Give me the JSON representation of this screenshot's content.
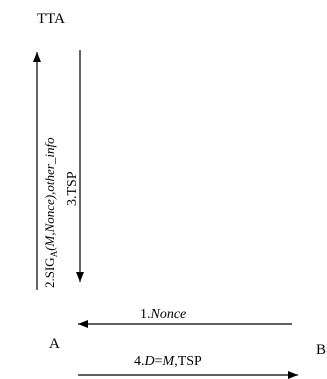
{
  "nodes": {
    "tta": "TTA",
    "a": "A",
    "b": "B"
  },
  "messages": {
    "m1": {
      "num": "1.",
      "text": "Nonce"
    },
    "m2": {
      "num": "2.",
      "sig": "SIG",
      "sub": "A",
      "args": "(M,Nonce),other_info"
    },
    "m3": {
      "text": "3.TSP"
    },
    "m4": {
      "num": "4.",
      "d": "D",
      "eq": "=",
      "m": "M",
      "rest": ",TSP"
    }
  },
  "colors": {
    "ink": "#000000",
    "background": "#ffffff"
  }
}
